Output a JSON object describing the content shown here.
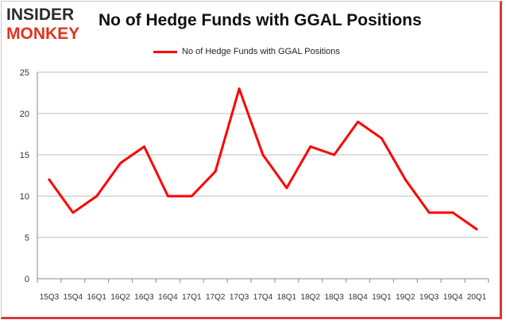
{
  "brand": {
    "line1": "INSIDER",
    "line2": "MONKEY"
  },
  "colors": {
    "series": "#ff0000",
    "frame_accent": "#d33a3a",
    "grid": "#bdbdbd",
    "brand_red": "#e0331f"
  },
  "chart_data": {
    "type": "line",
    "title": "No of Hedge Funds with GGAL Positions",
    "xlabel": "",
    "ylabel": "",
    "categories": [
      "15Q3",
      "15Q4",
      "16Q1",
      "16Q2",
      "16Q3",
      "16Q4",
      "17Q1",
      "17Q2",
      "17Q3",
      "17Q4",
      "18Q1",
      "18Q2",
      "18Q3",
      "18Q4",
      "19Q1",
      "19Q2",
      "19Q3",
      "19Q4",
      "20Q1"
    ],
    "series": [
      {
        "name": "No of Hedge Funds with GGAL Positions",
        "values": [
          12,
          8,
          10,
          14,
          16,
          10,
          10,
          13,
          23,
          15,
          11,
          16,
          15,
          19,
          17,
          12,
          8,
          8,
          6
        ]
      }
    ],
    "ylim": [
      0,
      25
    ],
    "yticks": [
      0,
      5,
      10,
      15,
      20,
      25
    ],
    "grid": true,
    "legend_position": "top"
  }
}
